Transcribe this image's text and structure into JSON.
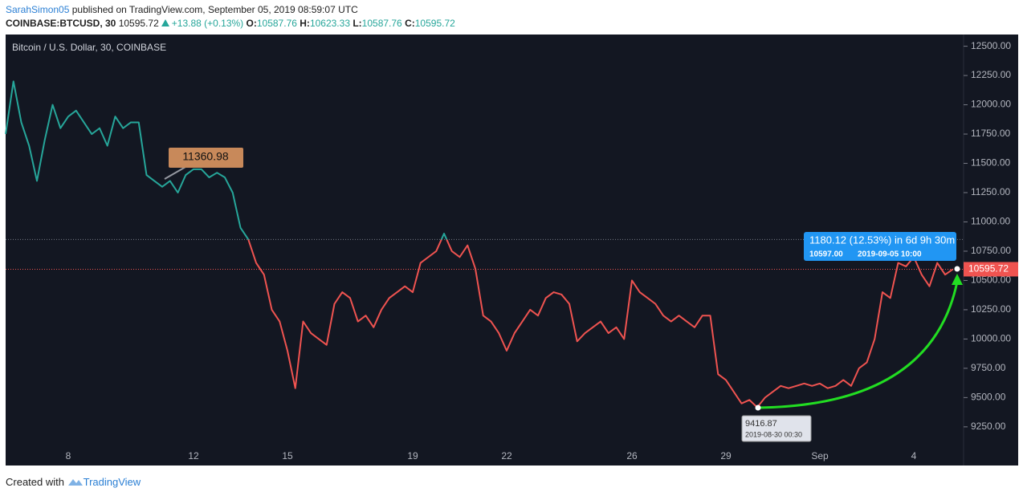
{
  "header": {
    "author": "SarahSimon05",
    "published": "published on TradingView.com, September 05, 2019 08:59:07 UTC",
    "symbol": "COINBASE:BTCUSD, 30",
    "price": "10595.72",
    "change": "+13.88 (+0.13%)",
    "open_label": "O:",
    "open": "10587.76",
    "high_label": "H:",
    "high": "10623.33",
    "low_label": "L:",
    "low": "10587.76",
    "close_label": "C:",
    "close": "10595.72"
  },
  "footer": {
    "created": "Created with",
    "brand": "TradingView"
  },
  "chart_data": {
    "type": "line",
    "title": "Bitcoin / U.S. Dollar, 30, COINBASE",
    "categories": [
      null,
      null,
      null,
      null,
      null,
      null,
      null,
      null,
      "8",
      null,
      null,
      null,
      null,
      null,
      null,
      null,
      null,
      null,
      null,
      null,
      null,
      null,
      null,
      null,
      "12",
      null,
      null,
      null,
      null,
      null,
      null,
      null,
      null,
      null,
      null,
      null,
      "15",
      null,
      null,
      null,
      null,
      null,
      null,
      null,
      null,
      null,
      null,
      null,
      null,
      null,
      null,
      null,
      "19",
      null,
      null,
      null,
      null,
      null,
      null,
      null,
      null,
      null,
      null,
      null,
      "22",
      null,
      null,
      null,
      null,
      null,
      null,
      null,
      null,
      null,
      null,
      null,
      null,
      null,
      null,
      null,
      "26",
      null,
      null,
      null,
      null,
      null,
      null,
      null,
      null,
      null,
      null,
      null,
      "29",
      null,
      null,
      null,
      null,
      null,
      null,
      null,
      null,
      null,
      null,
      null,
      "Sep",
      null,
      null,
      null,
      null,
      null,
      null,
      null,
      null,
      null,
      null,
      null,
      "4",
      null,
      null,
      null,
      null,
      null
    ],
    "values": [
      11750,
      12200,
      11850,
      11650,
      11350,
      11700,
      12000,
      11800,
      11900,
      11950,
      11850,
      11750,
      11800,
      11650,
      11900,
      11800,
      11850,
      11850,
      11400,
      11350,
      11300,
      11350,
      11250,
      11400,
      11450,
      11450,
      11380,
      11420,
      11380,
      11250,
      10950,
      10850,
      10650,
      10550,
      10250,
      10150,
      9900,
      9580,
      10150,
      10050,
      10000,
      9950,
      10300,
      10400,
      10350,
      10150,
      10200,
      10100,
      10250,
      10350,
      10400,
      10450,
      10400,
      10650,
      10700,
      10750,
      10900,
      10750,
      10700,
      10800,
      10600,
      10200,
      10150,
      10050,
      9900,
      10050,
      10150,
      10250,
      10200,
      10350,
      10400,
      10380,
      10300,
      9980,
      10050,
      10100,
      10150,
      10050,
      10100,
      10000,
      10500,
      10400,
      10350,
      10300,
      10200,
      10150,
      10200,
      10150,
      10100,
      10200,
      10200,
      9700,
      9650,
      9550,
      9450,
      9480,
      9417,
      9500,
      9550,
      9600,
      9580,
      9600,
      9620,
      9600,
      9620,
      9580,
      9600,
      9650,
      9600,
      9750,
      9800,
      10000,
      10400,
      10350,
      10650,
      10620,
      10700,
      10550,
      10450,
      10650,
      10550,
      10595.72
    ],
    "color_above": "#26a69a",
    "color_below": "#ef5350",
    "baseline": 10850,
    "ylim": [
      8920,
      12600
    ],
    "yticks": [
      {
        "value": 9250,
        "label": "9250.00"
      },
      {
        "value": 9500,
        "label": "9500.00"
      },
      {
        "value": 9750,
        "label": "9750.00"
      },
      {
        "value": 10000,
        "label": "10000.00"
      },
      {
        "value": 10250,
        "label": "10250.00"
      },
      {
        "value": 10500,
        "label": "10500.00"
      },
      {
        "value": 10750,
        "label": "10750.00"
      },
      {
        "value": 11000,
        "label": "11000.00"
      },
      {
        "value": 11250,
        "label": "11250.00"
      },
      {
        "value": 11500,
        "label": "11500.00"
      },
      {
        "value": 11750,
        "label": "11750.00"
      },
      {
        "value": 12000,
        "label": "12000.00"
      },
      {
        "value": 12250,
        "label": "12250.00"
      },
      {
        "value": 12500,
        "label": "12500.00"
      }
    ],
    "grid": false,
    "annotations": {
      "price_note": "11360.98",
      "range_title": "1180.12 (12.53%) in 6d 9h 30m",
      "range_price": "10597.00",
      "range_time": "2019-09-05  10:00",
      "low_price": "9416.87",
      "low_time": "2019-08-30 00:30"
    }
  }
}
